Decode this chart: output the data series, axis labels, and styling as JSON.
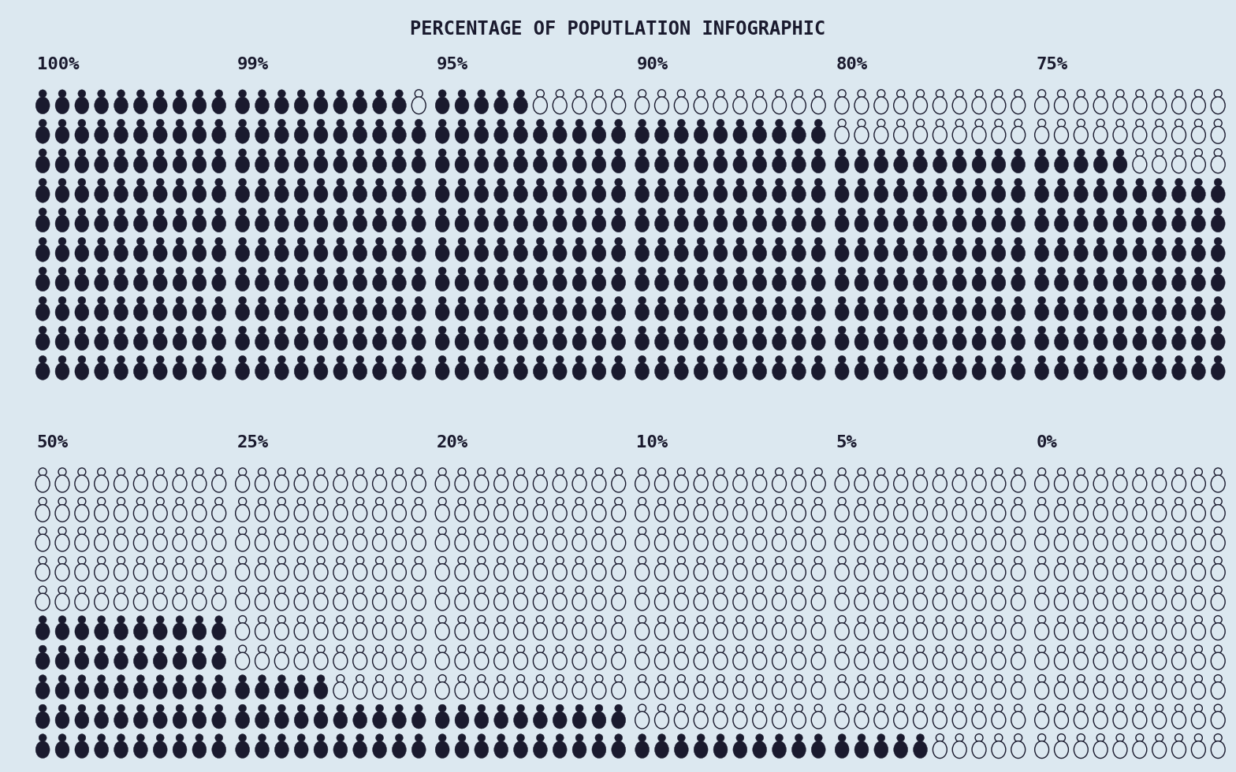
{
  "title": "PERCENTAGE OF POPUTLATION INFOGRAPHIC",
  "background_color": "#dce8f0",
  "title_color": "#1a1a2e",
  "icon_filled_color": "#1a1a2e",
  "icon_empty_color": "#dce8f0",
  "icon_outline_color": "#1a1a2e",
  "panels": [
    {
      "label": "100%",
      "percent": 100
    },
    {
      "label": "99%",
      "percent": 99
    },
    {
      "label": "95%",
      "percent": 95
    },
    {
      "label": "90%",
      "percent": 90
    },
    {
      "label": "80%",
      "percent": 80
    },
    {
      "label": "75%",
      "percent": 75
    },
    {
      "label": "50%",
      "percent": 50
    },
    {
      "label": "25%",
      "percent": 25
    },
    {
      "label": "20%",
      "percent": 20
    },
    {
      "label": "10%",
      "percent": 10
    },
    {
      "label": "5%",
      "percent": 5
    },
    {
      "label": "0%",
      "percent": 0
    }
  ],
  "cols_per_panel": 10,
  "rows_per_panel": 10,
  "n_cols": 6,
  "n_rows": 2,
  "label_fontsize": 16
}
